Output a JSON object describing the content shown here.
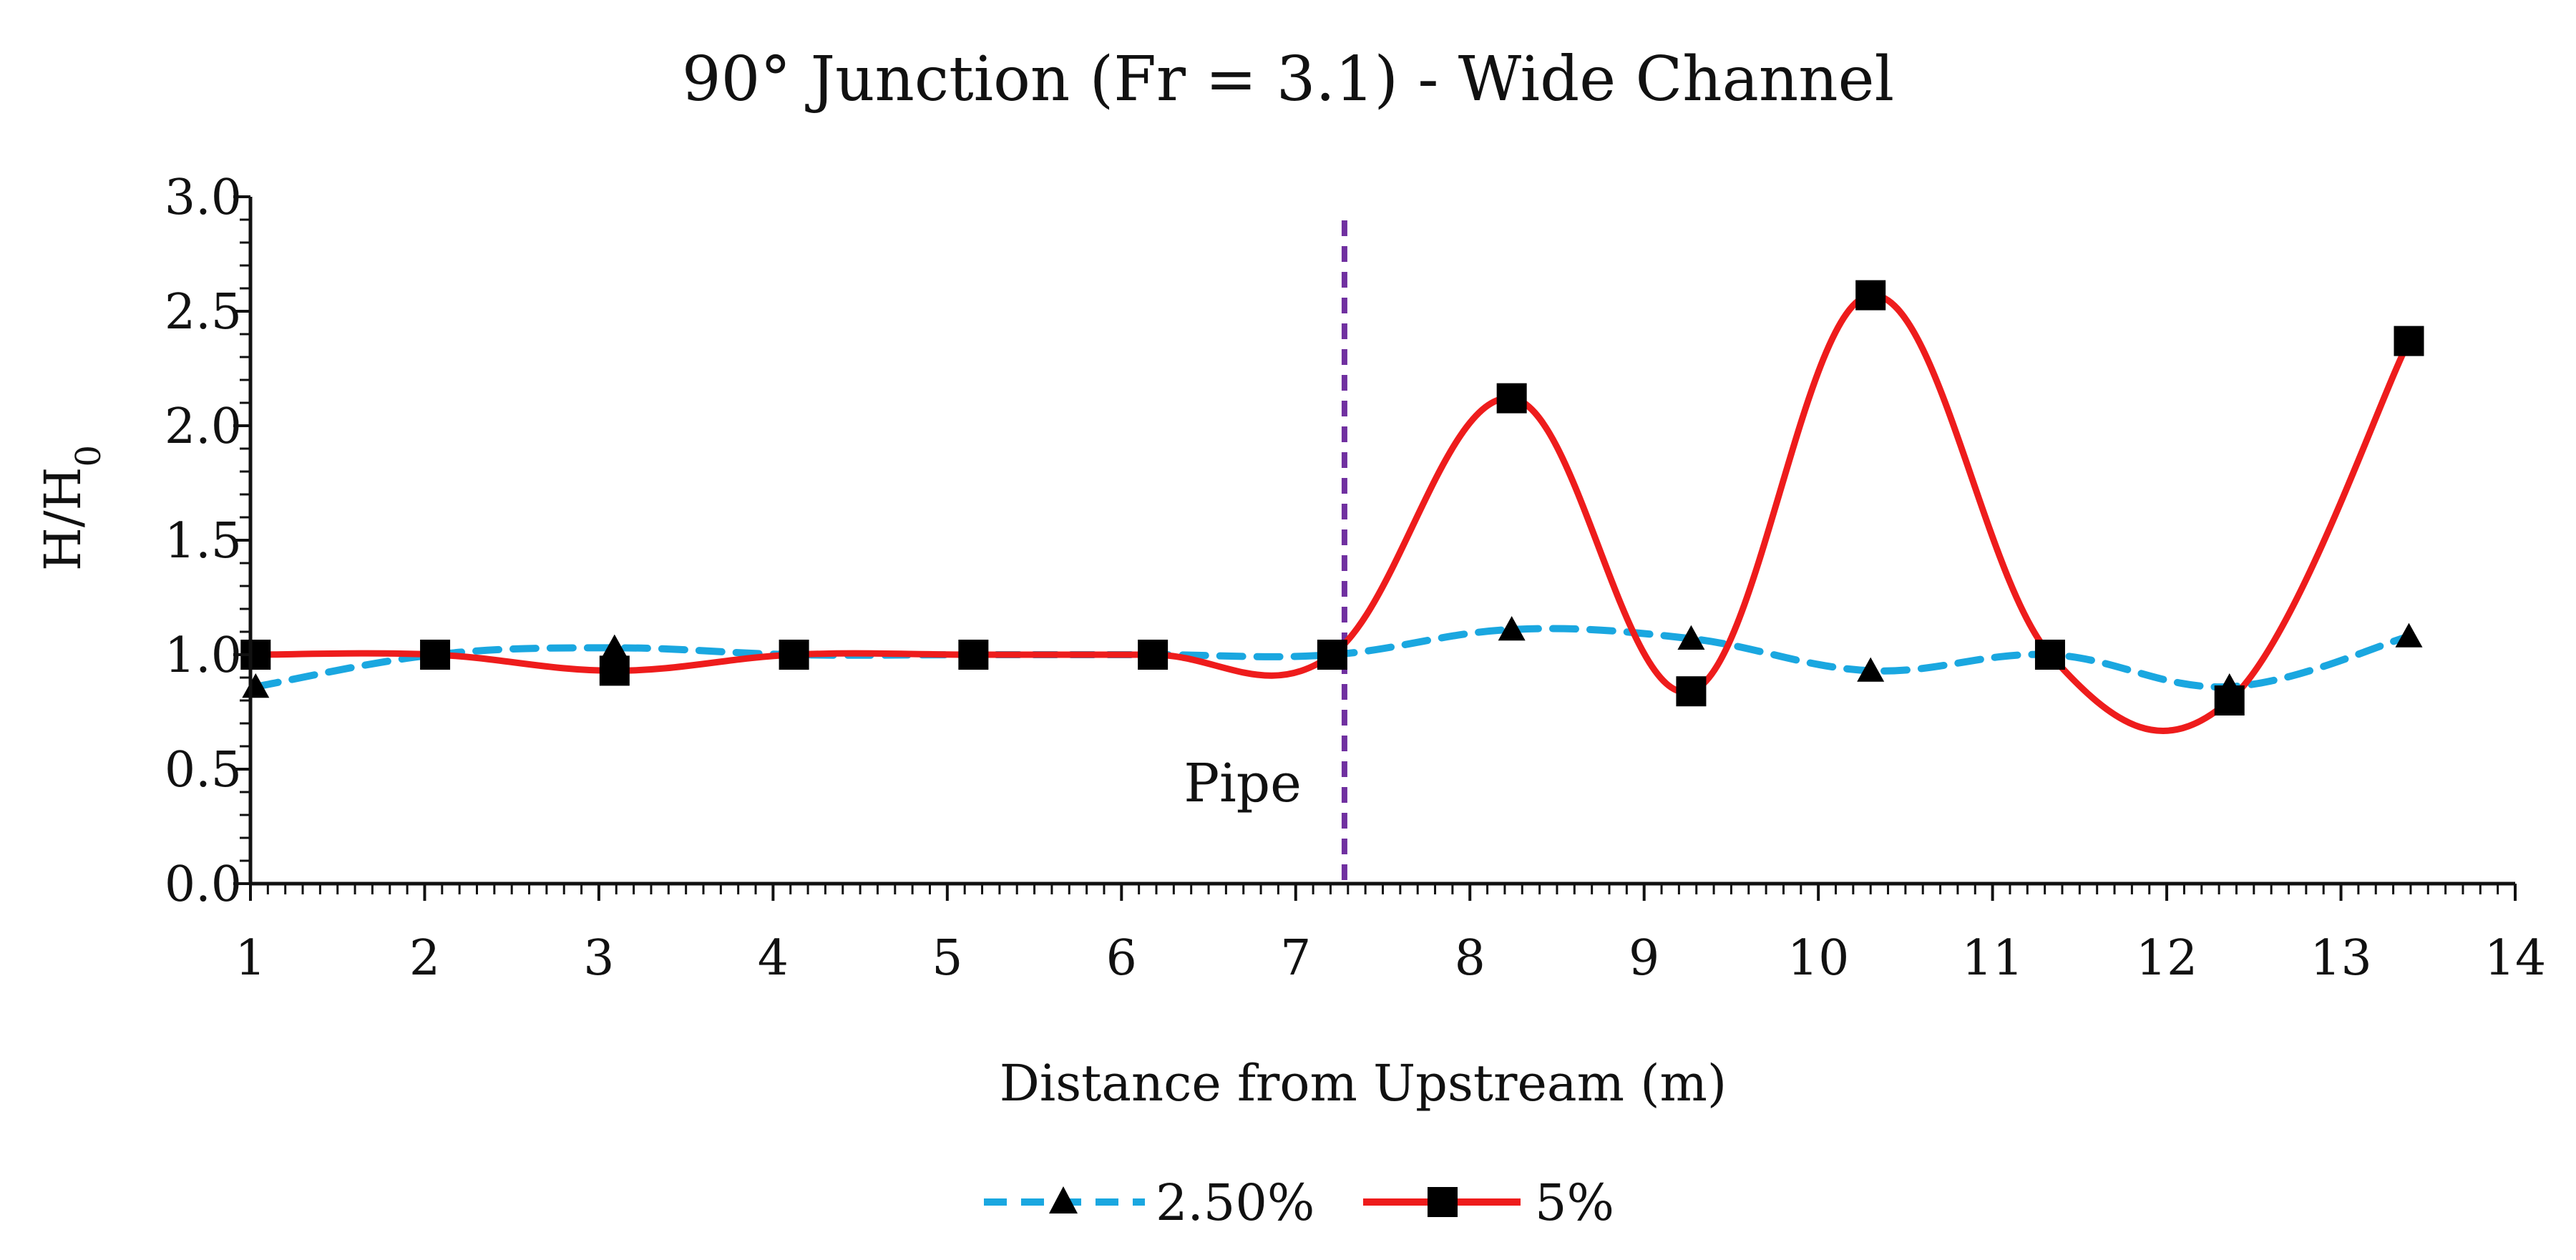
{
  "chart_data": {
    "type": "line",
    "title": "90° Junction (Fr = 3.1) - Wide Channel",
    "xlabel": "Distance from Upstream (m)",
    "ylabel_main": "H/H",
    "ylabel_sub": "0",
    "xlim": [
      1,
      14
    ],
    "ylim": [
      0,
      3
    ],
    "x_ticks": [
      1,
      2,
      3,
      4,
      5,
      6,
      7,
      8,
      9,
      10,
      11,
      12,
      13,
      14
    ],
    "x_tick_labels": [
      "1",
      "2",
      "3",
      "4",
      "5",
      "6",
      "7",
      "8",
      "9",
      "10",
      "11",
      "12",
      "13",
      "14"
    ],
    "x_minor_step": 0.1,
    "y_ticks": [
      0,
      0.5,
      1,
      1.5,
      2,
      2.5,
      3
    ],
    "y_tick_labels": [
      "0.0",
      "0.5",
      "1.0",
      "1.5",
      "2.0",
      "2.5",
      "3.0"
    ],
    "y_minor_step": 0.1,
    "grid": false,
    "legend_position": "bottom-center",
    "series": [
      {
        "name": "2.50%",
        "color": "#1aa7e0",
        "line_style": "dashed",
        "marker": "triangle",
        "x": [
          1.03,
          2.06,
          3.09,
          4.12,
          5.15,
          6.18,
          7.21,
          8.24,
          9.27,
          10.3,
          11.33,
          12.36,
          13.39
        ],
        "values": [
          0.86,
          1.0,
          1.03,
          1.0,
          1.0,
          1.0,
          1.0,
          1.11,
          1.07,
          0.93,
          1.0,
          0.86,
          1.08
        ]
      },
      {
        "name": "5%",
        "color": "#ee1c1c",
        "line_style": "solid",
        "marker": "square",
        "x": [
          1.03,
          2.06,
          3.09,
          4.12,
          5.15,
          6.18,
          7.21,
          8.24,
          9.27,
          10.3,
          11.33,
          12.36,
          13.39
        ],
        "values": [
          1.0,
          1.0,
          0.93,
          1.0,
          1.0,
          1.0,
          1.0,
          2.12,
          0.84,
          2.57,
          1.0,
          0.8,
          2.37
        ]
      }
    ],
    "annotations": [
      {
        "type": "vertical-line",
        "x": 7.28,
        "color": "#7030a0",
        "line_style": "dashed",
        "label": "Pipe"
      }
    ]
  }
}
